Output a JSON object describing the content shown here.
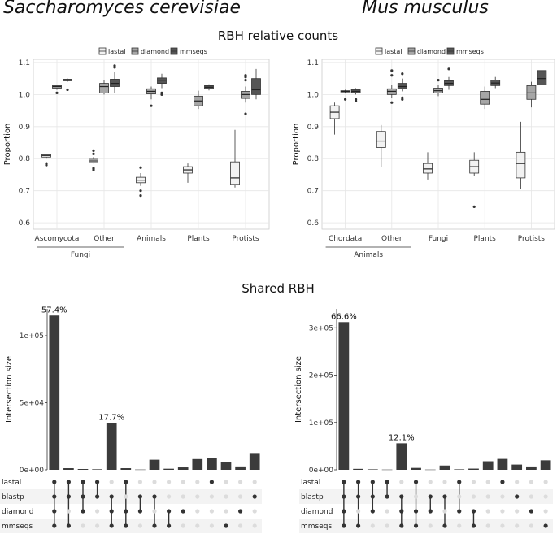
{
  "titles": {
    "left_species": "Saccharomyces cerevisiae",
    "right_species": "Mus musculus",
    "rbh_section": "RBH relative counts",
    "shared_section": "Shared RBH"
  },
  "legend": {
    "items": [
      {
        "name": "lastal",
        "color": "#f2f2f2"
      },
      {
        "name": "diamond",
        "color": "#a6a6a6"
      },
      {
        "name": "mmseqs",
        "color": "#555555"
      }
    ]
  },
  "colors": {
    "bar": "#3b3b3b",
    "dot_on": "#333333",
    "dot_off": "#dcdcdc",
    "grid": "#e6e6e6",
    "panel_border": "#cccccc",
    "stripe": "#f3f3f3"
  },
  "chart_data": [
    {
      "id": "box_left",
      "type": "box",
      "ylabel": "Proportion",
      "ylim": [
        0.58,
        1.11
      ],
      "yticks": [
        "0.6",
        "0.7",
        "0.8",
        "0.9",
        "1.0",
        "1.1"
      ],
      "categories": [
        "Ascomycota",
        "Other",
        "Animals",
        "Plants",
        "Protists"
      ],
      "group_label": "Fungi",
      "group_span": [
        0,
        1
      ],
      "series": [
        {
          "name": "lastal",
          "boxes": [
            {
              "min": 0.8,
              "q1": 0.805,
              "median": 0.81,
              "q3": 0.813,
              "max": 0.815,
              "outliers": [
                0.785,
                0.78
              ]
            },
            {
              "min": 0.785,
              "q1": 0.788,
              "median": 0.793,
              "q3": 0.798,
              "max": 0.805,
              "outliers": [
                0.825,
                0.815,
                0.77,
                0.765
              ]
            },
            {
              "min": 0.715,
              "q1": 0.725,
              "median": 0.733,
              "q3": 0.742,
              "max": 0.755,
              "outliers": [
                0.772,
                0.7,
                0.685
              ]
            },
            {
              "min": 0.725,
              "q1": 0.755,
              "median": 0.765,
              "q3": 0.775,
              "max": 0.785,
              "outliers": []
            },
            {
              "min": 0.71,
              "q1": 0.72,
              "median": 0.74,
              "q3": 0.79,
              "max": 0.89,
              "outliers": []
            }
          ]
        },
        {
          "name": "diamond",
          "boxes": [
            {
              "min": 1.015,
              "q1": 1.02,
              "median": 1.025,
              "q3": 1.028,
              "max": 1.03,
              "outliers": [
                1.005
              ]
            },
            {
              "min": 1.0,
              "q1": 1.005,
              "median": 1.025,
              "q3": 1.035,
              "max": 1.045,
              "outliers": []
            },
            {
              "min": 0.985,
              "q1": 1.002,
              "median": 1.01,
              "q3": 1.018,
              "max": 1.025,
              "outliers": [
                0.965
              ]
            },
            {
              "min": 0.955,
              "q1": 0.965,
              "median": 0.98,
              "q3": 0.995,
              "max": 1.012,
              "outliers": []
            },
            {
              "min": 0.975,
              "q1": 0.988,
              "median": 1.0,
              "q3": 1.01,
              "max": 1.025,
              "outliers": [
                1.06,
                1.055,
                1.045,
                0.94
              ]
            }
          ]
        },
        {
          "name": "mmseqs",
          "boxes": [
            {
              "min": 1.04,
              "q1": 1.043,
              "median": 1.045,
              "q3": 1.048,
              "max": 1.05,
              "outliers": [
                1.015
              ]
            },
            {
              "min": 1.005,
              "q1": 1.025,
              "median": 1.035,
              "q3": 1.048,
              "max": 1.07,
              "outliers": [
                1.09,
                1.085
              ]
            },
            {
              "min": 1.02,
              "q1": 1.035,
              "median": 1.045,
              "q3": 1.052,
              "max": 1.065,
              "outliers": [
                1.005,
                1.0
              ]
            },
            {
              "min": 1.013,
              "q1": 1.018,
              "median": 1.023,
              "q3": 1.028,
              "max": 1.032,
              "outliers": []
            },
            {
              "min": 0.985,
              "q1": 1.0,
              "median": 1.015,
              "q3": 1.05,
              "max": 1.08,
              "outliers": []
            }
          ]
        }
      ]
    },
    {
      "id": "box_right",
      "type": "box",
      "ylabel": "Proportion",
      "ylim": [
        0.58,
        1.11
      ],
      "yticks": [
        "0.6",
        "0.7",
        "0.8",
        "0.9",
        "1.0",
        "1.1"
      ],
      "categories": [
        "Chordata",
        "Other",
        "Fungi",
        "Plants",
        "Protists"
      ],
      "group_label": "Animals",
      "group_span": [
        0,
        1
      ],
      "series": [
        {
          "name": "lastal",
          "boxes": [
            {
              "min": 0.875,
              "q1": 0.925,
              "median": 0.945,
              "q3": 0.965,
              "max": 0.975,
              "outliers": []
            },
            {
              "min": 0.775,
              "q1": 0.835,
              "median": 0.855,
              "q3": 0.885,
              "max": 0.905,
              "outliers": []
            },
            {
              "min": 0.735,
              "q1": 0.755,
              "median": 0.768,
              "q3": 0.785,
              "max": 0.82,
              "outliers": []
            },
            {
              "min": 0.745,
              "q1": 0.755,
              "median": 0.775,
              "q3": 0.795,
              "max": 0.82,
              "outliers": [
                0.65
              ]
            },
            {
              "min": 0.705,
              "q1": 0.74,
              "median": 0.785,
              "q3": 0.82,
              "max": 0.915,
              "outliers": []
            }
          ]
        },
        {
          "name": "diamond",
          "boxes": [
            {
              "min": 1.005,
              "q1": 1.008,
              "median": 1.01,
              "q3": 1.012,
              "max": 1.015,
              "outliers": [
                0.985
              ]
            },
            {
              "min": 0.99,
              "q1": 1.0,
              "median": 1.01,
              "q3": 1.018,
              "max": 1.03,
              "outliers": [
                1.075,
                1.06,
                0.975
              ]
            },
            {
              "min": 0.995,
              "q1": 1.005,
              "median": 1.012,
              "q3": 1.02,
              "max": 1.03,
              "outliers": [
                1.045
              ]
            },
            {
              "min": 0.955,
              "q1": 0.97,
              "median": 0.985,
              "q3": 1.01,
              "max": 1.025,
              "outliers": []
            },
            {
              "min": 0.96,
              "q1": 0.985,
              "median": 1.005,
              "q3": 1.028,
              "max": 1.04,
              "outliers": []
            }
          ]
        },
        {
          "name": "mmseqs",
          "boxes": [
            {
              "min": 1.0,
              "q1": 1.005,
              "median": 1.01,
              "q3": 1.015,
              "max": 1.02,
              "outliers": [
                0.985,
                0.98
              ]
            },
            {
              "min": 1.01,
              "q1": 1.018,
              "median": 1.025,
              "q3": 1.035,
              "max": 1.05,
              "outliers": [
                1.065,
                0.99,
                0.985
              ]
            },
            {
              "min": 1.015,
              "q1": 1.028,
              "median": 1.035,
              "q3": 1.043,
              "max": 1.055,
              "outliers": [
                1.08
              ]
            },
            {
              "min": 1.02,
              "q1": 1.028,
              "median": 1.036,
              "q3": 1.045,
              "max": 1.055,
              "outliers": []
            },
            {
              "min": 0.975,
              "q1": 1.03,
              "median": 1.05,
              "q3": 1.075,
              "max": 1.095,
              "outliers": []
            }
          ]
        }
      ]
    },
    {
      "id": "upset_left",
      "type": "bar",
      "ylabel": "Intersection size",
      "ylim": [
        0,
        120000
      ],
      "yticks": [
        {
          "value": 0,
          "label": "0e+00"
        },
        {
          "value": 50000,
          "label": "5e+04"
        },
        {
          "value": 100000,
          "label": "1e+05"
        }
      ],
      "sets": [
        "lastal",
        "blastp",
        "diamond",
        "mmseqs"
      ],
      "values": [
        115000,
        1200,
        600,
        400,
        35000,
        1200,
        200,
        7500,
        800,
        1800,
        8000,
        8500,
        5500,
        2500,
        12500
      ],
      "membership": [
        [
          1,
          1,
          1,
          1
        ],
        [
          1,
          1,
          0,
          1
        ],
        [
          1,
          1,
          1,
          0
        ],
        [
          1,
          1,
          0,
          0
        ],
        [
          0,
          1,
          1,
          1
        ],
        [
          1,
          0,
          1,
          1
        ],
        [
          0,
          1,
          1,
          0
        ],
        [
          0,
          1,
          0,
          1
        ],
        [
          0,
          0,
          1,
          1
        ],
        [
          0,
          0,
          1,
          0
        ],
        [
          0,
          0,
          0,
          0
        ],
        [
          1,
          0,
          0,
          0
        ],
        [
          0,
          0,
          0,
          1
        ],
        [
          0,
          0,
          1,
          0
        ],
        [
          0,
          1,
          0,
          0
        ]
      ],
      "bar_labels": [
        {
          "index": 0,
          "text": "57.4%"
        },
        {
          "index": 4,
          "text": "17.7%"
        }
      ]
    },
    {
      "id": "upset_right",
      "type": "bar",
      "ylabel": "Intersection size",
      "ylim": [
        0,
        340000
      ],
      "yticks": [
        {
          "value": 0,
          "label": "0e+00"
        },
        {
          "value": 100000,
          "label": "1e+05"
        },
        {
          "value": 200000,
          "label": "2e+05"
        },
        {
          "value": 300000,
          "label": "3e+05"
        }
      ],
      "sets": [
        "lastal",
        "blastp",
        "diamond",
        "mmseqs"
      ],
      "values": [
        312000,
        2000,
        1000,
        500,
        56000,
        4000,
        500,
        9000,
        1000,
        2500,
        18000,
        23000,
        11000,
        7000,
        20000
      ],
      "membership": [
        [
          1,
          1,
          1,
          1
        ],
        [
          1,
          1,
          0,
          1
        ],
        [
          1,
          1,
          1,
          0
        ],
        [
          1,
          1,
          0,
          0
        ],
        [
          0,
          1,
          1,
          1
        ],
        [
          1,
          0,
          1,
          1
        ],
        [
          0,
          1,
          1,
          0
        ],
        [
          0,
          1,
          0,
          1
        ],
        [
          1,
          0,
          1,
          0
        ],
        [
          0,
          0,
          1,
          1
        ],
        [
          0,
          0,
          0,
          0
        ],
        [
          1,
          0,
          0,
          0
        ],
        [
          0,
          1,
          0,
          0
        ],
        [
          0,
          0,
          1,
          0
        ],
        [
          0,
          0,
          0,
          1
        ]
      ],
      "bar_labels": [
        {
          "index": 0,
          "text": "66.6%"
        },
        {
          "index": 4,
          "text": "12.1%"
        }
      ]
    }
  ]
}
